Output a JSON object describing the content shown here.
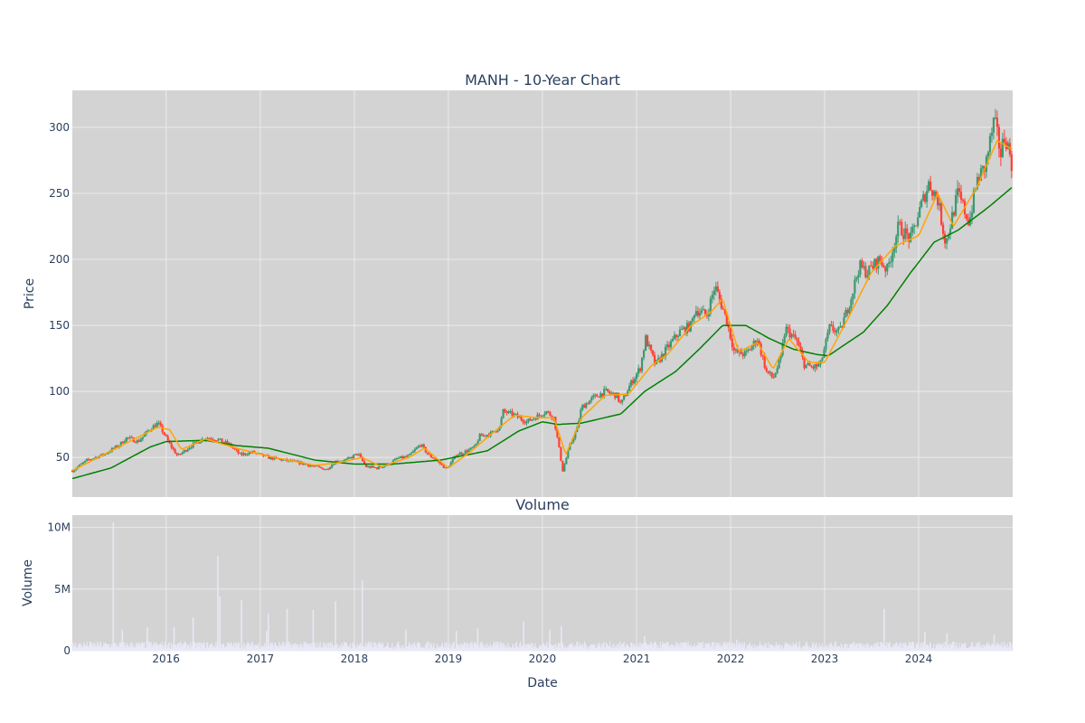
{
  "chart_data": [
    {
      "type": "candlestick",
      "title": "MANH - 10-Year Chart",
      "xlabel": "",
      "ylabel": "Price",
      "x_range": [
        "2015-01-02",
        "2024-12-31"
      ],
      "ylim": [
        20,
        328
      ],
      "y_ticks": [
        50,
        100,
        150,
        200,
        250,
        300
      ],
      "x_ticks": [
        "2016",
        "2017",
        "2018",
        "2019",
        "2020",
        "2021",
        "2022",
        "2023",
        "2024"
      ],
      "grid": true,
      "legend": "none",
      "plot_background": "#d3d3d3",
      "grid_color": "#ebebeb",
      "colors": {
        "up": "#3d9970",
        "down": "#ff4136",
        "ma_short": "#ffa500",
        "ma_long": "#008000"
      },
      "close_points": [
        [
          "2015-01-02",
          40
        ],
        [
          "2015-03-01",
          48
        ],
        [
          "2015-05-01",
          52
        ],
        [
          "2015-07-01",
          59
        ],
        [
          "2015-08-01",
          65
        ],
        [
          "2015-09-15",
          62
        ],
        [
          "2015-11-01",
          72
        ],
        [
          "2015-12-01",
          76
        ],
        [
          "2016-01-15",
          60
        ],
        [
          "2016-02-15",
          51
        ],
        [
          "2016-04-01",
          58
        ],
        [
          "2016-06-01",
          65
        ],
        [
          "2016-07-15",
          64
        ],
        [
          "2016-09-01",
          60
        ],
        [
          "2016-10-15",
          52
        ],
        [
          "2016-12-01",
          54
        ],
        [
          "2017-02-01",
          50
        ],
        [
          "2017-04-01",
          48
        ],
        [
          "2017-06-01",
          46
        ],
        [
          "2017-08-01",
          43
        ],
        [
          "2017-09-15",
          41
        ],
        [
          "2017-10-20",
          47
        ],
        [
          "2017-12-01",
          48
        ],
        [
          "2018-01-15",
          53
        ],
        [
          "2018-02-15",
          43
        ],
        [
          "2018-04-01",
          42
        ],
        [
          "2018-05-15",
          45
        ],
        [
          "2018-06-15",
          49
        ],
        [
          "2018-08-01",
          51
        ],
        [
          "2018-09-15",
          60
        ],
        [
          "2018-10-15",
          52
        ],
        [
          "2018-11-15",
          48
        ],
        [
          "2018-12-25",
          41
        ],
        [
          "2019-02-01",
          52
        ],
        [
          "2019-03-15",
          55
        ],
        [
          "2019-04-15",
          58
        ],
        [
          "2019-05-01",
          66
        ],
        [
          "2019-06-15",
          68
        ],
        [
          "2019-07-20",
          73
        ],
        [
          "2019-08-01",
          85
        ],
        [
          "2019-09-15",
          82
        ],
        [
          "2019-11-01",
          77
        ],
        [
          "2019-12-01",
          80
        ],
        [
          "2020-01-15",
          85
        ],
        [
          "2020-02-15",
          80
        ],
        [
          "2020-03-20",
          40
        ],
        [
          "2020-04-15",
          58
        ],
        [
          "2020-05-15",
          72
        ],
        [
          "2020-06-01",
          88
        ],
        [
          "2020-07-15",
          95
        ],
        [
          "2020-09-01",
          100
        ],
        [
          "2020-10-15",
          97
        ],
        [
          "2020-11-01",
          90
        ],
        [
          "2020-12-01",
          103
        ],
        [
          "2021-01-15",
          118
        ],
        [
          "2021-02-05",
          140
        ],
        [
          "2021-03-15",
          120
        ],
        [
          "2021-05-01",
          133
        ],
        [
          "2021-06-15",
          145
        ],
        [
          "2021-08-01",
          150
        ],
        [
          "2021-08-15",
          162
        ],
        [
          "2021-10-01",
          158
        ],
        [
          "2021-11-01",
          180
        ],
        [
          "2021-12-15",
          155
        ],
        [
          "2022-01-15",
          130
        ],
        [
          "2022-03-01",
          128
        ],
        [
          "2022-04-15",
          140
        ],
        [
          "2022-05-20",
          115
        ],
        [
          "2022-06-15",
          110
        ],
        [
          "2022-07-15",
          125
        ],
        [
          "2022-08-01",
          148
        ],
        [
          "2022-09-15",
          138
        ],
        [
          "2022-10-15",
          120
        ],
        [
          "2022-11-15",
          118
        ],
        [
          "2022-12-15",
          120
        ],
        [
          "2023-01-20",
          148
        ],
        [
          "2023-03-01",
          145
        ],
        [
          "2023-04-15",
          172
        ],
        [
          "2023-05-15",
          195
        ],
        [
          "2023-06-15",
          190
        ],
        [
          "2023-08-01",
          200
        ],
        [
          "2023-09-01",
          192
        ],
        [
          "2023-10-15",
          225
        ],
        [
          "2023-12-01",
          215
        ],
        [
          "2024-01-01",
          235
        ],
        [
          "2024-02-10",
          258
        ],
        [
          "2024-03-15",
          245
        ],
        [
          "2024-04-15",
          212
        ],
        [
          "2024-06-01",
          250
        ],
        [
          "2024-07-15",
          228
        ],
        [
          "2024-08-15",
          260
        ],
        [
          "2024-09-15",
          270
        ],
        [
          "2024-10-20",
          305
        ],
        [
          "2024-11-15",
          280
        ],
        [
          "2024-12-01",
          295
        ],
        [
          "2024-12-31",
          270
        ]
      ],
      "ma_short_points": [
        [
          "2015-01-02",
          40
        ],
        [
          "2015-06-01",
          55
        ],
        [
          "2015-12-01",
          73
        ],
        [
          "2016-01-15",
          71
        ],
        [
          "2016-03-01",
          56
        ],
        [
          "2016-06-01",
          64
        ],
        [
          "2016-10-01",
          57
        ],
        [
          "2017-02-01",
          51
        ],
        [
          "2017-08-01",
          44
        ],
        [
          "2017-11-01",
          46
        ],
        [
          "2018-02-01",
          50
        ],
        [
          "2018-04-15",
          43
        ],
        [
          "2018-08-01",
          50
        ],
        [
          "2018-10-01",
          57
        ],
        [
          "2019-01-01",
          42
        ],
        [
          "2019-04-01",
          55
        ],
        [
          "2019-07-01",
          70
        ],
        [
          "2019-09-15",
          82
        ],
        [
          "2019-12-15",
          80
        ],
        [
          "2020-02-15",
          80
        ],
        [
          "2020-04-01",
          52
        ],
        [
          "2020-06-01",
          80
        ],
        [
          "2020-09-01",
          97
        ],
        [
          "2020-12-01",
          98
        ],
        [
          "2021-03-01",
          120
        ],
        [
          "2021-05-01",
          128
        ],
        [
          "2021-08-01",
          150
        ],
        [
          "2021-10-15",
          160
        ],
        [
          "2021-12-01",
          170
        ],
        [
          "2022-02-01",
          130
        ],
        [
          "2022-04-15",
          137
        ],
        [
          "2022-06-15",
          117
        ],
        [
          "2022-08-15",
          140
        ],
        [
          "2022-11-01",
          122
        ],
        [
          "2023-01-01",
          122
        ],
        [
          "2023-04-01",
          155
        ],
        [
          "2023-07-01",
          190
        ],
        [
          "2023-10-01",
          210
        ],
        [
          "2024-01-01",
          218
        ],
        [
          "2024-03-15",
          250
        ],
        [
          "2024-05-15",
          225
        ],
        [
          "2024-08-15",
          255
        ],
        [
          "2024-11-01",
          290
        ],
        [
          "2024-12-31",
          283
        ]
      ],
      "ma_long_points": [
        [
          "2015-01-02",
          34
        ],
        [
          "2015-06-01",
          42
        ],
        [
          "2015-11-01",
          58
        ],
        [
          "2016-01-01",
          62
        ],
        [
          "2016-06-01",
          63
        ],
        [
          "2016-10-01",
          59
        ],
        [
          "2017-02-01",
          57
        ],
        [
          "2017-08-01",
          48
        ],
        [
          "2018-01-01",
          45
        ],
        [
          "2018-06-01",
          45
        ],
        [
          "2018-12-01",
          48
        ],
        [
          "2019-06-01",
          55
        ],
        [
          "2019-10-01",
          70
        ],
        [
          "2020-01-01",
          77
        ],
        [
          "2020-03-01",
          75
        ],
        [
          "2020-06-01",
          76
        ],
        [
          "2020-11-01",
          83
        ],
        [
          "2021-02-01",
          100
        ],
        [
          "2021-06-01",
          115
        ],
        [
          "2021-09-01",
          132
        ],
        [
          "2021-12-01",
          150
        ],
        [
          "2022-03-01",
          150
        ],
        [
          "2022-06-01",
          140
        ],
        [
          "2022-09-01",
          132
        ],
        [
          "2022-12-01",
          128
        ],
        [
          "2023-01-15",
          127
        ],
        [
          "2023-06-01",
          145
        ],
        [
          "2023-09-01",
          165
        ],
        [
          "2023-12-01",
          190
        ],
        [
          "2024-03-01",
          213
        ],
        [
          "2024-06-01",
          222
        ],
        [
          "2024-10-01",
          240
        ],
        [
          "2024-12-31",
          255
        ]
      ]
    },
    {
      "type": "bar",
      "title": "Volume",
      "xlabel": "Date",
      "ylabel": "Volume",
      "x_range": [
        "2015-01-02",
        "2024-12-31"
      ],
      "ylim": [
        0,
        11000000
      ],
      "y_ticks": [
        0,
        5000000,
        10000000
      ],
      "y_tick_labels": [
        "0",
        "5M",
        "10M"
      ],
      "x_ticks": [
        "2016",
        "2017",
        "2018",
        "2019",
        "2020",
        "2021",
        "2022",
        "2023",
        "2024"
      ],
      "grid": true,
      "legend": "none",
      "plot_background": "#d3d3d3",
      "bar_color": "#e8e8f6",
      "baseline_volume": 500000,
      "spikes": [
        [
          "2015-06-10",
          10400000
        ],
        [
          "2015-07-15",
          1700000
        ],
        [
          "2015-10-20",
          1900000
        ],
        [
          "2016-02-01",
          1900000
        ],
        [
          "2016-04-15",
          2700000
        ],
        [
          "2016-07-20",
          7700000
        ],
        [
          "2016-07-28",
          4400000
        ],
        [
          "2016-10-20",
          4100000
        ],
        [
          "2017-01-25",
          1600000
        ],
        [
          "2017-02-01",
          3000000
        ],
        [
          "2017-04-15",
          3400000
        ],
        [
          "2017-07-25",
          3300000
        ],
        [
          "2017-10-20",
          4000000
        ],
        [
          "2018-02-01",
          5700000
        ],
        [
          "2018-07-20",
          1700000
        ],
        [
          "2019-02-01",
          1600000
        ],
        [
          "2019-04-25",
          1800000
        ],
        [
          "2019-10-20",
          2400000
        ],
        [
          "2020-01-30",
          1700000
        ],
        [
          "2020-03-15",
          2000000
        ],
        [
          "2021-02-01",
          1200000
        ],
        [
          "2022-01-25",
          900000
        ],
        [
          "2023-08-20",
          3400000
        ],
        [
          "2024-01-25",
          1500000
        ],
        [
          "2024-04-20",
          1400000
        ],
        [
          "2024-10-20",
          1300000
        ]
      ]
    }
  ]
}
